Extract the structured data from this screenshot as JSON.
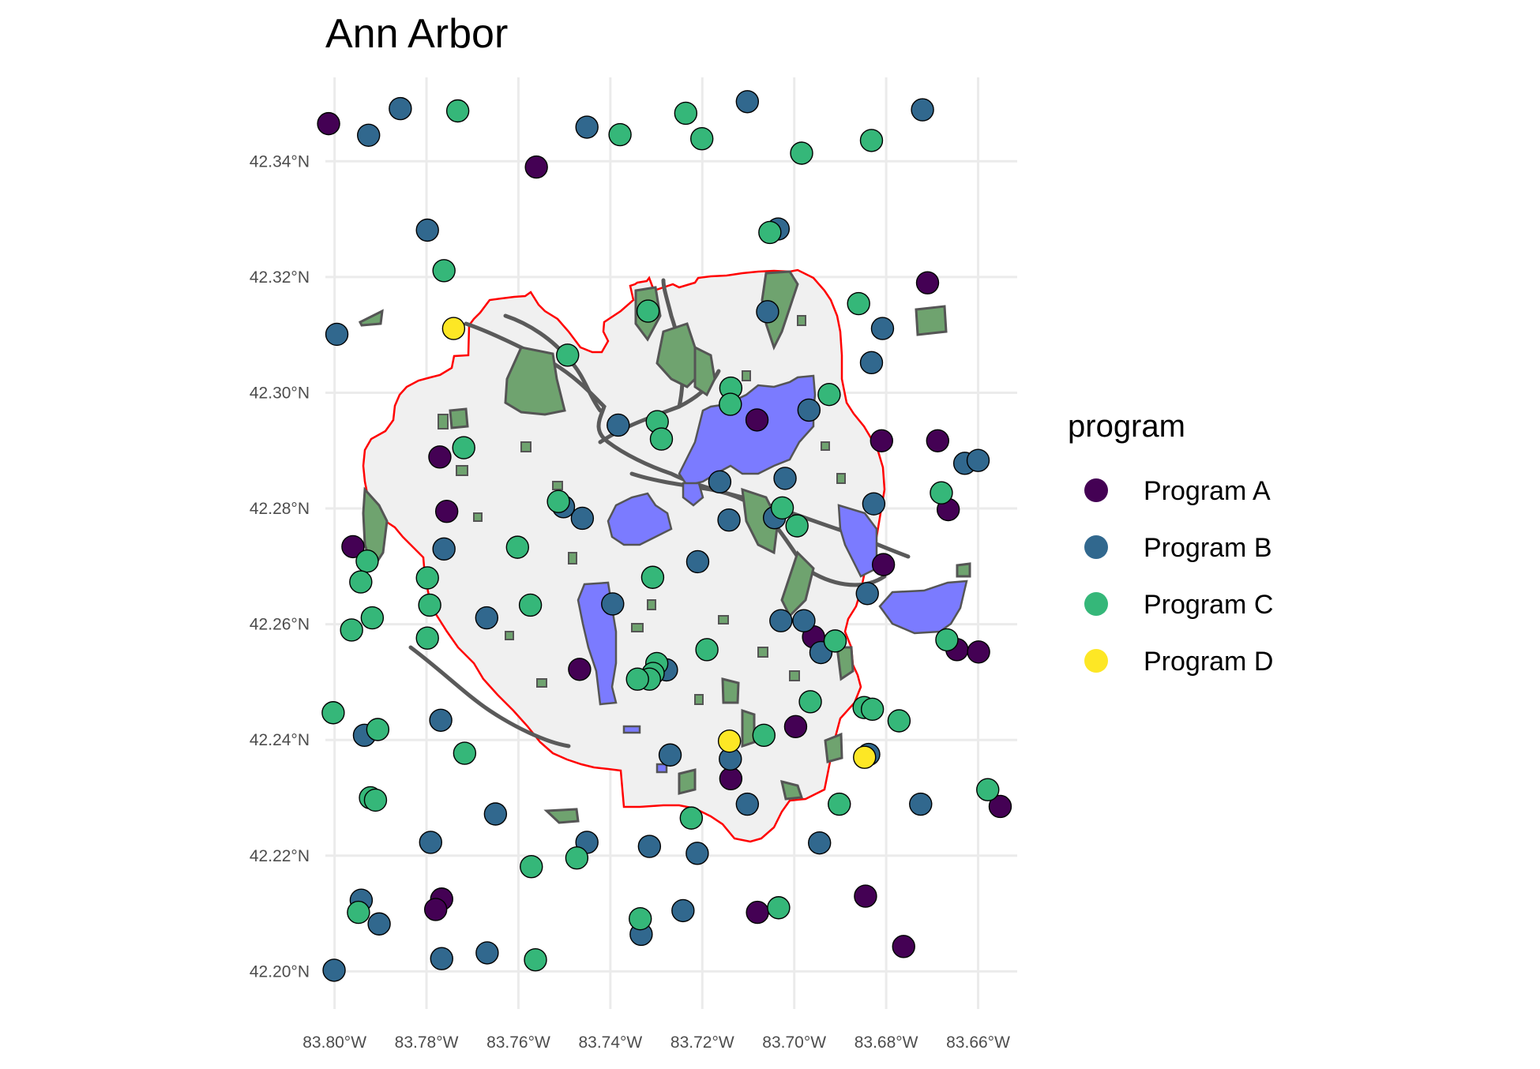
{
  "title": "Ann Arbor",
  "axes": {
    "x_ticks": [
      {
        "value": -83.8,
        "label": "83.80°W"
      },
      {
        "value": -83.78,
        "label": "83.78°W"
      },
      {
        "value": -83.76,
        "label": "83.76°W"
      },
      {
        "value": -83.74,
        "label": "83.74°W"
      },
      {
        "value": -83.72,
        "label": "83.72°W"
      },
      {
        "value": -83.7,
        "label": "83.70°W"
      },
      {
        "value": -83.68,
        "label": "83.68°W"
      },
      {
        "value": -83.66,
        "label": "83.66°W"
      }
    ],
    "y_ticks": [
      {
        "value": 42.2,
        "label": "42.20°N"
      },
      {
        "value": 42.22,
        "label": "42.22°N"
      },
      {
        "value": 42.24,
        "label": "42.24°N"
      },
      {
        "value": 42.26,
        "label": "42.26°N"
      },
      {
        "value": 42.28,
        "label": "42.28°N"
      },
      {
        "value": 42.3,
        "label": "42.30°N"
      },
      {
        "value": 42.32,
        "label": "42.32°N"
      },
      {
        "value": 42.34,
        "label": "42.34°N"
      }
    ],
    "lon_range": [
      -83.802,
      -83.6515
    ],
    "lat_range": [
      42.1935,
      42.3545
    ],
    "grid": true
  },
  "legend": {
    "title": "program",
    "position": "right",
    "items": [
      {
        "key": "A",
        "label": "Program A",
        "color": "#440154"
      },
      {
        "key": "B",
        "label": "Program B",
        "color": "#31688E"
      },
      {
        "key": "C",
        "label": "Program C",
        "color": "#35B779"
      },
      {
        "key": "D",
        "label": "Program D",
        "color": "#FDE725"
      }
    ]
  },
  "colors": {
    "city_fill": "#f0f0f0",
    "city_border": "#ff0000",
    "park_fill": "#6fa36f",
    "park_border": "#555555",
    "zone_fill": "#7b7bff",
    "road": "#5a5a5a",
    "grid": "#ebebeb",
    "axis_text": "#4d4d4d"
  },
  "chart_data": {
    "type": "scatter",
    "title": "Ann Arbor",
    "xlabel": "",
    "ylabel": "",
    "series": [
      {
        "name": "Program A",
        "points": [
          [
            -83.8013,
            42.3465
          ],
          [
            -83.7561,
            42.339
          ],
          [
            -83.671,
            42.319
          ],
          [
            -83.7081,
            42.2953
          ],
          [
            -83.681,
            42.2917
          ],
          [
            -83.6688,
            42.2917
          ],
          [
            -83.7771,
            42.2889
          ],
          [
            -83.7756,
            42.2795
          ],
          [
            -83.6665,
            42.2798
          ],
          [
            -83.796,
            42.2734
          ],
          [
            -83.6806,
            42.2703
          ],
          [
            -83.6958,
            42.2578
          ],
          [
            -83.6646,
            42.2556
          ],
          [
            -83.6599,
            42.2552
          ],
          [
            -83.7467,
            42.2522
          ],
          [
            -83.6997,
            42.2423
          ],
          [
            -83.7138,
            42.2333
          ],
          [
            -83.6552,
            42.2285
          ],
          [
            -83.7767,
            42.2125
          ],
          [
            -83.6845,
            42.213
          ],
          [
            -83.778,
            42.2107
          ],
          [
            -83.708,
            42.2102
          ],
          [
            -83.6762,
            42.2043
          ]
        ]
      },
      {
        "name": "Program B",
        "points": [
          [
            -83.7857,
            42.3491
          ],
          [
            -83.7102,
            42.3503
          ],
          [
            -83.6721,
            42.3489
          ],
          [
            -83.7926,
            42.3445
          ],
          [
            -83.7451,
            42.3459
          ],
          [
            -83.7798,
            42.3281
          ],
          [
            -83.7035,
            42.3283
          ],
          [
            -83.7995,
            42.3101
          ],
          [
            -83.7058,
            42.314
          ],
          [
            -83.6808,
            42.3111
          ],
          [
            -83.6832,
            42.3052
          ],
          [
            -83.6968,
            42.297
          ],
          [
            -83.7383,
            42.2944
          ],
          [
            -83.6629,
            42.2878
          ],
          [
            -83.66,
            42.2883
          ],
          [
            -83.702,
            42.2852
          ],
          [
            -83.7162,
            42.2846
          ],
          [
            -83.6827,
            42.2808
          ],
          [
            -83.7461,
            42.2783
          ],
          [
            -83.7142,
            42.278
          ],
          [
            -83.7043,
            42.2784
          ],
          [
            -83.7502,
            42.2803
          ],
          [
            -83.7762,
            42.273
          ],
          [
            -83.721,
            42.2708
          ],
          [
            -83.7395,
            42.2635
          ],
          [
            -83.6841,
            42.2653
          ],
          [
            -83.7669,
            42.2611
          ],
          [
            -83.7029,
            42.2606
          ],
          [
            -83.6979,
            42.2606
          ],
          [
            -83.6942,
            42.2551
          ],
          [
            -83.7278,
            42.2521
          ],
          [
            -83.7769,
            42.2434
          ],
          [
            -83.7935,
            42.2408
          ],
          [
            -83.6838,
            42.2375
          ],
          [
            -83.727,
            42.2374
          ],
          [
            -83.7139,
            42.2367
          ],
          [
            -83.7102,
            42.2289
          ],
          [
            -83.6725,
            42.2289
          ],
          [
            -83.765,
            42.2272
          ],
          [
            -83.7791,
            42.2223
          ],
          [
            -83.7451,
            42.2223
          ],
          [
            -83.7315,
            42.2216
          ],
          [
            -83.6945,
            42.2222
          ],
          [
            -83.7211,
            42.2204
          ],
          [
            -83.7942,
            42.2123
          ],
          [
            -83.7242,
            42.2105
          ],
          [
            -83.7903,
            42.2082
          ],
          [
            -83.7333,
            42.2064
          ],
          [
            -83.7668,
            42.2032
          ],
          [
            -83.7767,
            42.2022
          ],
          [
            -83.8001,
            42.2002
          ]
        ]
      },
      {
        "name": "Program C",
        "points": [
          [
            -83.7732,
            42.3487
          ],
          [
            -83.7236,
            42.3483
          ],
          [
            -83.7379,
            42.3446
          ],
          [
            -83.7201,
            42.3439
          ],
          [
            -83.6832,
            42.3436
          ],
          [
            -83.6984,
            42.3414
          ],
          [
            -83.7053,
            42.3277
          ],
          [
            -83.7762,
            42.3211
          ],
          [
            -83.686,
            42.3154
          ],
          [
            -83.7318,
            42.3141
          ],
          [
            -83.7493,
            42.3065
          ],
          [
            -83.7138,
            42.3008
          ],
          [
            -83.6924,
            42.2997
          ],
          [
            -83.7139,
            42.298
          ],
          [
            -83.7298,
            42.295
          ],
          [
            -83.7289,
            42.292
          ],
          [
            -83.7719,
            42.2905
          ],
          [
            -83.668,
            42.2827
          ],
          [
            -83.7513,
            42.2812
          ],
          [
            -83.7026,
            42.2801
          ],
          [
            -83.6994,
            42.277
          ],
          [
            -83.7602,
            42.2733
          ],
          [
            -83.7929,
            42.2709
          ],
          [
            -83.7943,
            42.2673
          ],
          [
            -83.7798,
            42.268
          ],
          [
            -83.7308,
            42.2681
          ],
          [
            -83.7793,
            42.2633
          ],
          [
            -83.7574,
            42.2633
          ],
          [
            -83.7918,
            42.2611
          ],
          [
            -83.7963,
            42.259
          ],
          [
            -83.7798,
            42.2576
          ],
          [
            -83.6911,
            42.2571
          ],
          [
            -83.6668,
            42.2573
          ],
          [
            -83.719,
            42.2556
          ],
          [
            -83.7299,
            42.2532
          ],
          [
            -83.7307,
            42.2515
          ],
          [
            -83.7315,
            42.2505
          ],
          [
            -83.7341,
            42.2505
          ],
          [
            -83.6965,
            42.2466
          ],
          [
            -83.6848,
            42.2456
          ],
          [
            -83.683,
            42.2453
          ],
          [
            -83.8003,
            42.2447
          ],
          [
            -83.6772,
            42.2433
          ],
          [
            -83.7906,
            42.2418
          ],
          [
            -83.7066,
            42.2408
          ],
          [
            -83.7717,
            42.2377
          ],
          [
            -83.6579,
            42.2314
          ],
          [
            -83.7922,
            42.23
          ],
          [
            -83.7911,
            42.2296
          ],
          [
            -83.6902,
            42.2289
          ],
          [
            -83.7224,
            42.2265
          ],
          [
            -83.7473,
            42.2196
          ],
          [
            -83.7572,
            42.2181
          ],
          [
            -83.7335,
            42.2091
          ],
          [
            -83.7034,
            42.211
          ],
          [
            -83.7948,
            42.2102
          ],
          [
            -83.7563,
            42.202
          ]
        ]
      },
      {
        "name": "Program D",
        "points": [
          [
            -83.7741,
            42.3111
          ],
          [
            -83.7141,
            42.2398
          ],
          [
            -83.6847,
            42.237
          ]
        ]
      }
    ],
    "xlim": [
      -83.802,
      -83.6515
    ],
    "ylim": [
      42.1935,
      42.3545
    ]
  }
}
